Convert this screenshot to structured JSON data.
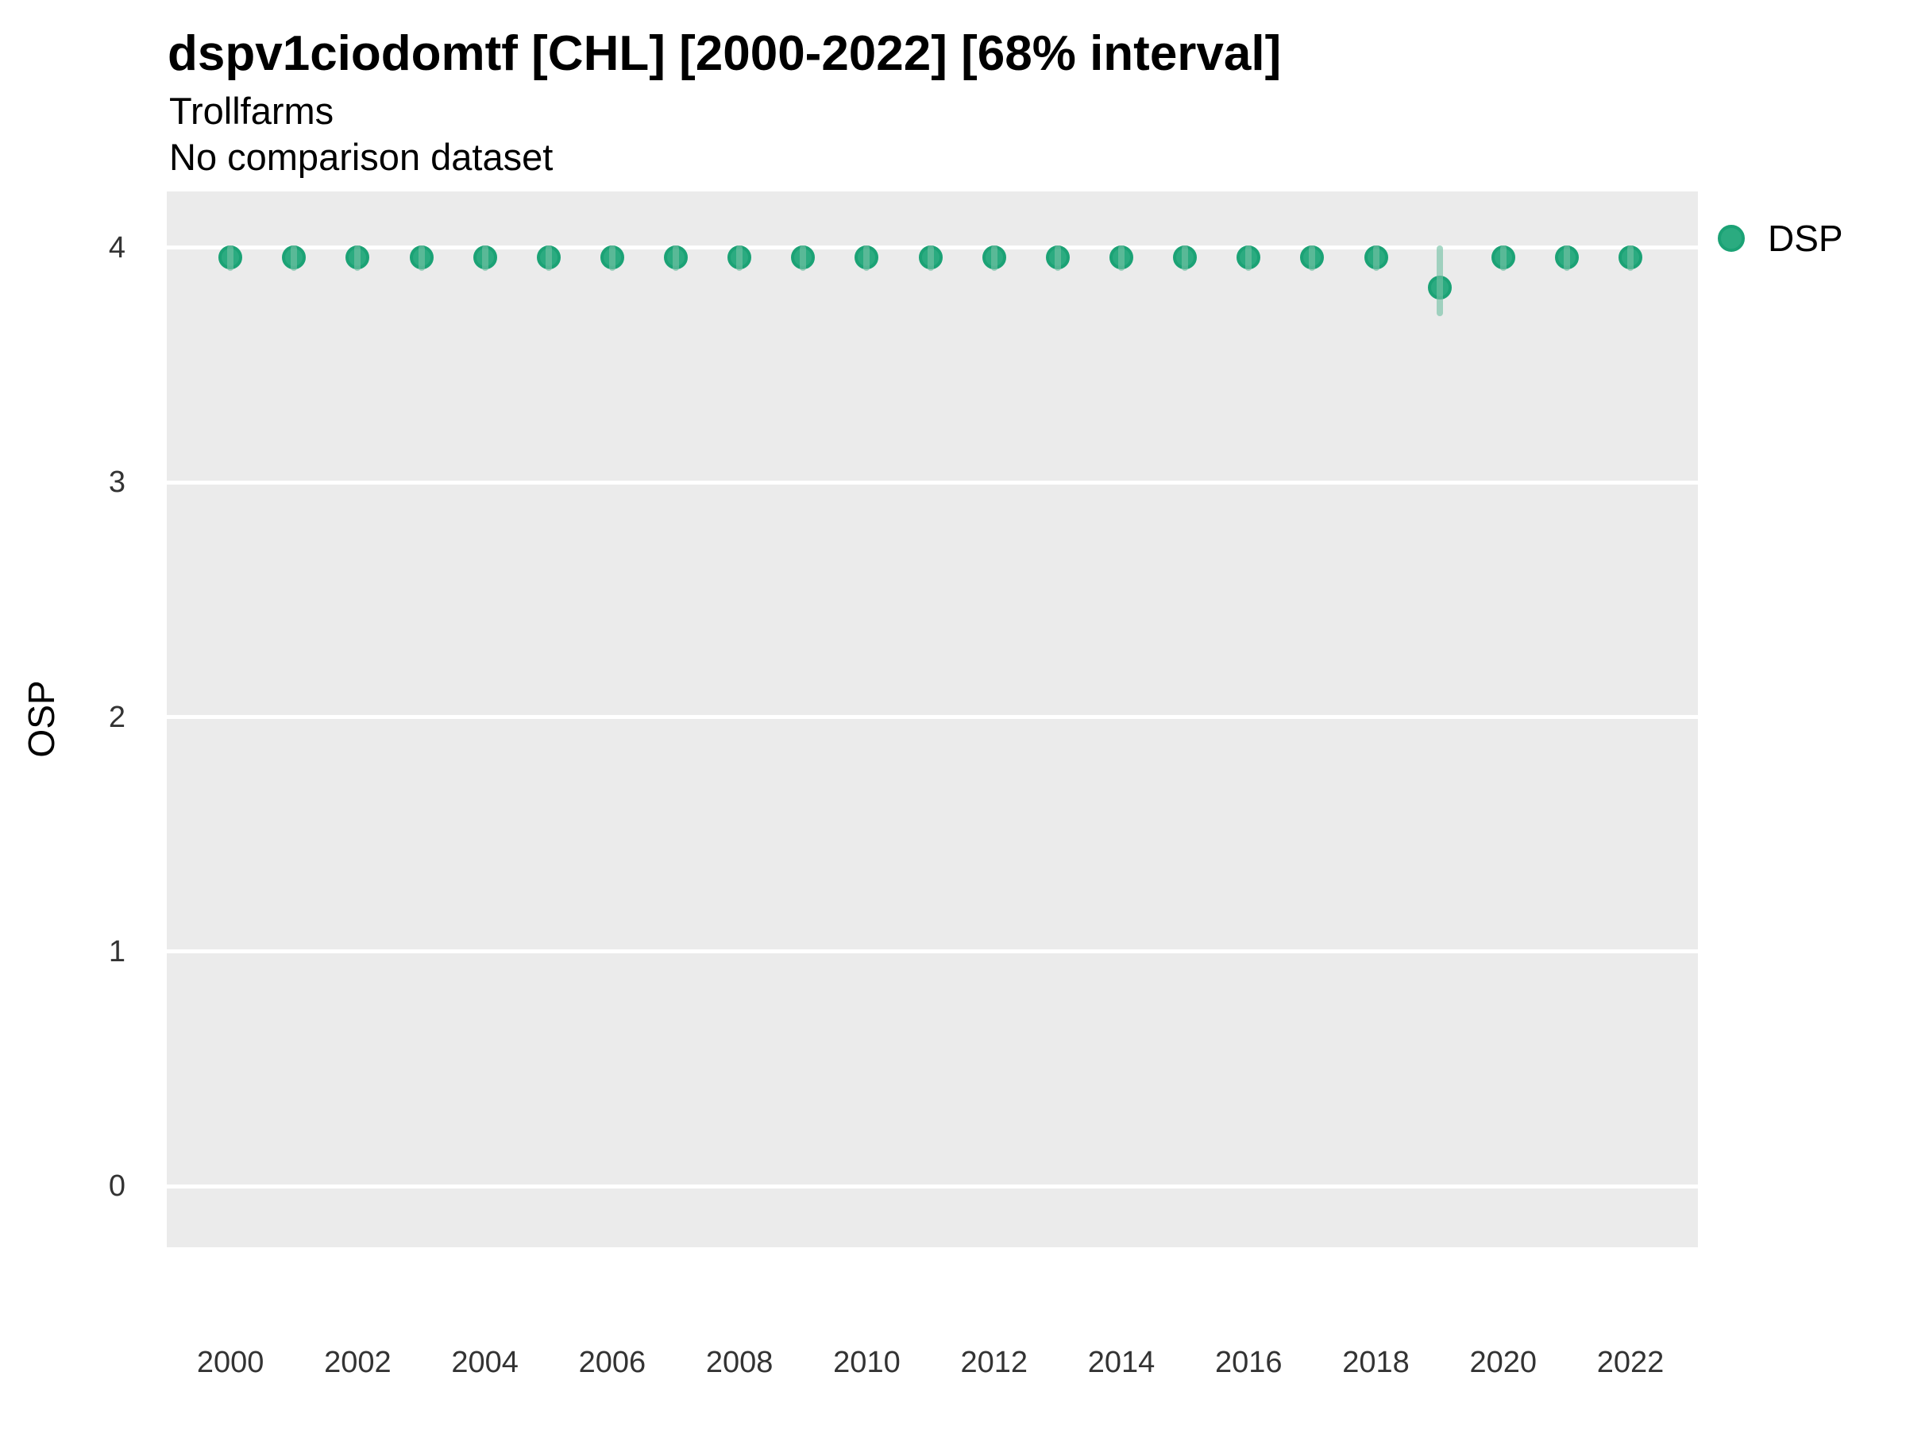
{
  "chart_data": {
    "type": "scatter",
    "title": "dspv1ciodomtf [CHL] [2000-2022] [68% interval]",
    "subtitle": "Trollfarms",
    "note": "No comparison dataset",
    "xlabel": "",
    "ylabel": "OSP",
    "interval_level": "68%",
    "legend_position": "right-top",
    "grid": "horizontal-major-only",
    "x": [
      2000,
      2001,
      2002,
      2003,
      2004,
      2005,
      2006,
      2007,
      2008,
      2009,
      2010,
      2011,
      2012,
      2013,
      2014,
      2015,
      2016,
      2017,
      2018,
      2019,
      2020,
      2021,
      2022
    ],
    "series": [
      {
        "name": "DSP",
        "values": [
          3.96,
          3.96,
          3.96,
          3.96,
          3.96,
          3.96,
          3.96,
          3.96,
          3.96,
          3.96,
          3.96,
          3.96,
          3.96,
          3.96,
          3.96,
          3.96,
          3.96,
          3.96,
          3.96,
          3.83,
          3.96,
          3.96,
          3.96
        ],
        "interval_low": [
          3.9,
          3.9,
          3.9,
          3.9,
          3.9,
          3.9,
          3.9,
          3.9,
          3.9,
          3.9,
          3.9,
          3.9,
          3.9,
          3.9,
          3.9,
          3.9,
          3.9,
          3.9,
          3.9,
          3.71,
          3.9,
          3.9,
          3.9
        ],
        "interval_high": [
          4.01,
          4.01,
          4.01,
          4.01,
          4.01,
          4.01,
          4.01,
          4.01,
          4.01,
          4.01,
          4.01,
          4.01,
          4.01,
          4.01,
          4.01,
          4.01,
          4.01,
          4.01,
          4.01,
          4.01,
          4.01,
          4.01,
          4.01
        ]
      }
    ],
    "xticks": [
      2000,
      2002,
      2004,
      2006,
      2008,
      2010,
      2012,
      2014,
      2016,
      2018,
      2020,
      2022
    ],
    "yticks": [
      0,
      1,
      2,
      3,
      4
    ],
    "xlim": [
      1999.0,
      2023.06
    ],
    "ylim": [
      -0.26,
      4.24
    ],
    "colors": {
      "point_fill": "#2bab80",
      "point_stroke": "#1ba275",
      "interval": "rgba(115,192,164,0.64)",
      "panel_background": "#ebebeb",
      "gridline": "#ffffff",
      "tick_text": "#333333",
      "text": "#000000"
    }
  }
}
